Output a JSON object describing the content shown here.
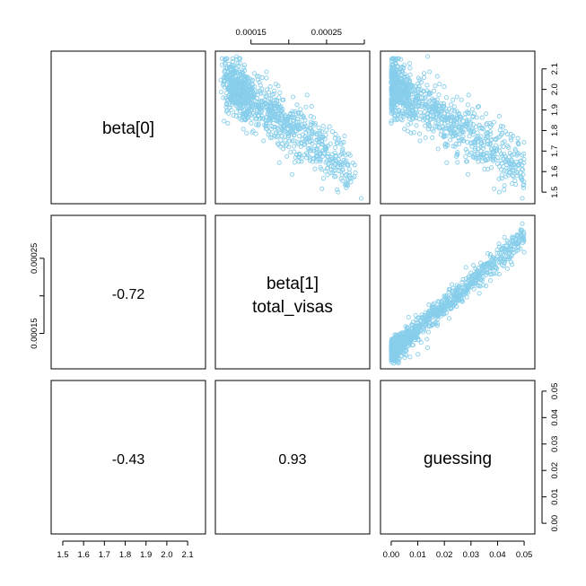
{
  "chart_data": {
    "type": "scatter",
    "subtype": "pairs-matrix",
    "point_color": "#87ceeb",
    "variables": [
      {
        "id": "beta0",
        "label": "beta[0]",
        "range": [
          1.47,
          2.16
        ]
      },
      {
        "id": "beta1",
        "label": "beta[1]\ntotal_visas",
        "label_lines": [
          "beta[1]",
          "total_visas"
        ],
        "range": [
          0.00011,
          0.0003
        ]
      },
      {
        "id": "guessing",
        "label": "guessing",
        "range": [
          -0.002,
          0.052
        ]
      }
    ],
    "correlations": [
      {
        "row": 1,
        "col": 0,
        "text": "-0.72"
      },
      {
        "row": 2,
        "col": 0,
        "text": "-0.43"
      },
      {
        "row": 2,
        "col": 1,
        "text": "0.93"
      }
    ],
    "axes": {
      "top": {
        "variable": "beta1",
        "ticks": [
          0.00015,
          0.0002,
          0.00025,
          0.0003
        ],
        "tick_labels": [
          "0.00015",
          "",
          "0.00025",
          ""
        ]
      },
      "right_row0": {
        "variable": "beta0",
        "ticks": [
          1.5,
          1.6,
          1.7,
          1.8,
          1.9,
          2.0,
          2.1
        ],
        "tick_labels": [
          "1.5",
          "1.6",
          "1.7",
          "1.8",
          "1.9",
          "2.0",
          "2.1"
        ]
      },
      "left_row1": {
        "variable": "beta1",
        "ticks": [
          0.00015,
          0.0002,
          0.00025
        ],
        "tick_labels": [
          "0.00015",
          "",
          "0.00025"
        ]
      },
      "right_row2": {
        "variable": "guessing",
        "ticks": [
          0.0,
          0.01,
          0.02,
          0.03,
          0.04,
          0.05
        ],
        "tick_labels": [
          "0.00",
          "0.01",
          "0.02",
          "0.03",
          "0.04",
          "0.05"
        ]
      },
      "bottom_col0": {
        "variable": "beta0",
        "ticks": [
          1.5,
          1.6,
          1.7,
          1.8,
          1.9,
          2.0,
          2.1
        ],
        "tick_labels": [
          "1.5",
          "1.6",
          "1.7",
          "1.8",
          "1.9",
          "2.0",
          "2.1"
        ]
      },
      "bottom_col2": {
        "variable": "guessing",
        "ticks": [
          0.0,
          0.01,
          0.02,
          0.03,
          0.04,
          0.05
        ],
        "tick_labels": [
          "0.00",
          "0.01",
          "0.02",
          "0.03",
          "0.04",
          "0.05"
        ]
      }
    },
    "scatter_panels": [
      {
        "row": 0,
        "col": 1,
        "x": "beta1",
        "y": "beta0"
      },
      {
        "row": 0,
        "col": 2,
        "x": "guessing",
        "y": "beta0"
      },
      {
        "row": 1,
        "col": 2,
        "x": "guessing",
        "y": "beta1"
      }
    ],
    "samples": {
      "n": 1000,
      "description_points": {
        "beta1": [
          0.00013,
          0.00015,
          0.00017,
          0.0002,
          0.00023,
          0.00026,
          0.0003
        ],
        "beta0": [
          2.12,
          2.0,
          1.93,
          1.86,
          1.78,
          1.68,
          1.47
        ],
        "guessing": [
          0.0,
          0.005,
          0.013,
          0.022,
          0.031,
          0.04,
          0.05
        ]
      }
    },
    "grid": false,
    "legend": "none"
  }
}
